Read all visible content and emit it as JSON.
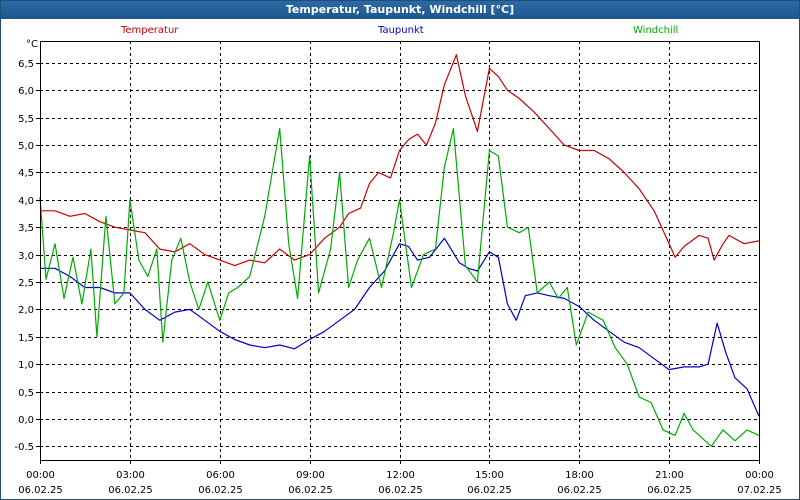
{
  "window": {
    "title": "Temperatur, Taupunkt, Windchill [°C]"
  },
  "colors": {
    "temperatur": "#cc0000",
    "taupunkt": "#0000cc",
    "windchill": "#00aa00",
    "grid": "#000000"
  },
  "chart_data": {
    "type": "line",
    "title": "Temperatur, Taupunkt, Windchill [°C]",
    "ylabel": "°C",
    "ylim": [
      -0.75,
      6.9
    ],
    "yticks": [
      -0.5,
      0.0,
      0.5,
      1.0,
      1.5,
      2.0,
      2.5,
      3.0,
      3.5,
      4.0,
      4.5,
      5.0,
      5.5,
      6.0,
      6.5
    ],
    "ytick_labels": [
      "-0.5",
      "0,0",
      "0,5",
      "1,0",
      "1,5",
      "2,0",
      "2,5",
      "3,0",
      "3,5",
      "4,0",
      "4,5",
      "5,0",
      "5,5",
      "6,0",
      "6,5"
    ],
    "xlim": [
      0,
      24
    ],
    "xticks": [
      {
        "h": 0,
        "time": "00:00",
        "date": "06.02.25"
      },
      {
        "h": 3,
        "time": "03:00",
        "date": "06.02.25"
      },
      {
        "h": 6,
        "time": "06:00",
        "date": "06.02.25"
      },
      {
        "h": 9,
        "time": "09:00",
        "date": "06.02.25"
      },
      {
        "h": 12,
        "time": "12:00",
        "date": "06.02.25"
      },
      {
        "h": 15,
        "time": "15:00",
        "date": "06.02.25"
      },
      {
        "h": 18,
        "time": "18:00",
        "date": "06.02.25"
      },
      {
        "h": 21,
        "time": "21:00",
        "date": "06.02.25"
      },
      {
        "h": 24,
        "time": "00:00",
        "date": "07.02.25"
      }
    ],
    "grid": true,
    "legend_placement": "top",
    "series": [
      {
        "name": "Temperatur",
        "color": "#cc0000",
        "points": [
          [
            0,
            3.8
          ],
          [
            0.5,
            3.8
          ],
          [
            1,
            3.7
          ],
          [
            1.5,
            3.75
          ],
          [
            2,
            3.6
          ],
          [
            2.5,
            3.5
          ],
          [
            3,
            3.45
          ],
          [
            3.5,
            3.4
          ],
          [
            4,
            3.1
          ],
          [
            4.5,
            3.05
          ],
          [
            5,
            3.2
          ],
          [
            5.5,
            3.0
          ],
          [
            6,
            2.9
          ],
          [
            6.5,
            2.8
          ],
          [
            7,
            2.9
          ],
          [
            7.5,
            2.85
          ],
          [
            8,
            3.1
          ],
          [
            8.5,
            2.9
          ],
          [
            9,
            3.0
          ],
          [
            9.5,
            3.3
          ],
          [
            10,
            3.5
          ],
          [
            10.3,
            3.75
          ],
          [
            10.7,
            3.85
          ],
          [
            11,
            4.3
          ],
          [
            11.3,
            4.5
          ],
          [
            11.7,
            4.4
          ],
          [
            12,
            4.9
          ],
          [
            12.3,
            5.1
          ],
          [
            12.6,
            5.2
          ],
          [
            12.9,
            5.0
          ],
          [
            13.2,
            5.4
          ],
          [
            13.5,
            6.1
          ],
          [
            13.9,
            6.65
          ],
          [
            14.2,
            5.9
          ],
          [
            14.6,
            5.25
          ],
          [
            15,
            6.4
          ],
          [
            15.3,
            6.25
          ],
          [
            15.6,
            6.0
          ],
          [
            16,
            5.85
          ],
          [
            16.5,
            5.6
          ],
          [
            17,
            5.3
          ],
          [
            17.5,
            5.0
          ],
          [
            18,
            4.9
          ],
          [
            18.5,
            4.9
          ],
          [
            19,
            4.75
          ],
          [
            19.5,
            4.5
          ],
          [
            20,
            4.2
          ],
          [
            20.5,
            3.8
          ],
          [
            21,
            3.2
          ],
          [
            21.2,
            2.95
          ],
          [
            21.5,
            3.15
          ],
          [
            22,
            3.35
          ],
          [
            22.3,
            3.3
          ],
          [
            22.5,
            2.9
          ],
          [
            22.8,
            3.2
          ],
          [
            23,
            3.35
          ],
          [
            23.5,
            3.2
          ],
          [
            24,
            3.25
          ]
        ]
      },
      {
        "name": "Taupunkt",
        "color": "#0000cc",
        "points": [
          [
            0,
            2.75
          ],
          [
            0.5,
            2.75
          ],
          [
            1,
            2.6
          ],
          [
            1.5,
            2.4
          ],
          [
            2,
            2.4
          ],
          [
            2.5,
            2.3
          ],
          [
            3,
            2.3
          ],
          [
            3.5,
            2.0
          ],
          [
            4,
            1.8
          ],
          [
            4.5,
            1.95
          ],
          [
            5,
            2.0
          ],
          [
            5.5,
            1.8
          ],
          [
            6,
            1.6
          ],
          [
            6.5,
            1.45
          ],
          [
            7,
            1.35
          ],
          [
            7.5,
            1.3
          ],
          [
            8,
            1.35
          ],
          [
            8.5,
            1.28
          ],
          [
            9,
            1.45
          ],
          [
            9.5,
            1.6
          ],
          [
            10,
            1.8
          ],
          [
            10.5,
            2.0
          ],
          [
            11,
            2.4
          ],
          [
            11.5,
            2.7
          ],
          [
            12,
            3.2
          ],
          [
            12.3,
            3.15
          ],
          [
            12.6,
            2.9
          ],
          [
            13,
            2.95
          ],
          [
            13.5,
            3.3
          ],
          [
            14,
            2.85
          ],
          [
            14.3,
            2.75
          ],
          [
            14.6,
            2.7
          ],
          [
            15,
            3.05
          ],
          [
            15.3,
            2.95
          ],
          [
            15.6,
            2.1
          ],
          [
            15.9,
            1.8
          ],
          [
            16.2,
            2.25
          ],
          [
            16.6,
            2.3
          ],
          [
            17,
            2.25
          ],
          [
            17.5,
            2.2
          ],
          [
            18,
            2.05
          ],
          [
            18.5,
            1.8
          ],
          [
            19,
            1.6
          ],
          [
            19.5,
            1.4
          ],
          [
            20,
            1.3
          ],
          [
            20.5,
            1.1
          ],
          [
            21,
            0.9
          ],
          [
            21.5,
            0.95
          ],
          [
            22,
            0.95
          ],
          [
            22.3,
            1.0
          ],
          [
            22.6,
            1.75
          ],
          [
            22.9,
            1.2
          ],
          [
            23.2,
            0.75
          ],
          [
            23.6,
            0.55
          ],
          [
            24,
            0.05
          ]
        ]
      },
      {
        "name": "Windchill",
        "color": "#00aa00",
        "points": [
          [
            0,
            4.05
          ],
          [
            0.2,
            2.55
          ],
          [
            0.5,
            3.2
          ],
          [
            0.8,
            2.2
          ],
          [
            1.1,
            2.95
          ],
          [
            1.4,
            2.1
          ],
          [
            1.7,
            3.1
          ],
          [
            1.9,
            1.5
          ],
          [
            2.2,
            3.7
          ],
          [
            2.5,
            2.1
          ],
          [
            2.8,
            2.3
          ],
          [
            3.0,
            4.0
          ],
          [
            3.3,
            2.9
          ],
          [
            3.6,
            2.6
          ],
          [
            3.9,
            3.1
          ],
          [
            4.1,
            1.4
          ],
          [
            4.4,
            2.9
          ],
          [
            4.7,
            3.3
          ],
          [
            5.0,
            2.5
          ],
          [
            5.3,
            2.0
          ],
          [
            5.6,
            2.5
          ],
          [
            6.0,
            1.8
          ],
          [
            6.3,
            2.3
          ],
          [
            6.6,
            2.4
          ],
          [
            7,
            2.6
          ],
          [
            7.5,
            3.7
          ],
          [
            8,
            5.3
          ],
          [
            8.3,
            3.2
          ],
          [
            8.6,
            2.2
          ],
          [
            9,
            4.8
          ],
          [
            9.3,
            2.3
          ],
          [
            9.7,
            3.1
          ],
          [
            10,
            4.5
          ],
          [
            10.3,
            2.4
          ],
          [
            10.6,
            2.9
          ],
          [
            11,
            3.3
          ],
          [
            11.4,
            2.4
          ],
          [
            11.8,
            3.4
          ],
          [
            12,
            4.0
          ],
          [
            12.4,
            2.4
          ],
          [
            12.8,
            3.0
          ],
          [
            13.2,
            3.1
          ],
          [
            13.5,
            4.6
          ],
          [
            13.8,
            5.3
          ],
          [
            14.2,
            2.8
          ],
          [
            14.6,
            2.5
          ],
          [
            15,
            4.9
          ],
          [
            15.3,
            4.8
          ],
          [
            15.6,
            3.5
          ],
          [
            16,
            3.4
          ],
          [
            16.3,
            3.5
          ],
          [
            16.6,
            2.3
          ],
          [
            17,
            2.5
          ],
          [
            17.3,
            2.2
          ],
          [
            17.6,
            2.4
          ],
          [
            17.9,
            1.35
          ],
          [
            18.3,
            1.95
          ],
          [
            18.8,
            1.8
          ],
          [
            19.2,
            1.3
          ],
          [
            19.6,
            1.0
          ],
          [
            20,
            0.4
          ],
          [
            20.4,
            0.3
          ],
          [
            20.8,
            -0.2
          ],
          [
            21.2,
            -0.3
          ],
          [
            21.5,
            0.1
          ],
          [
            21.8,
            -0.2
          ],
          [
            22.1,
            -0.35
          ],
          [
            22.4,
            -0.5
          ],
          [
            22.8,
            -0.2
          ],
          [
            23.2,
            -0.4
          ],
          [
            23.6,
            -0.2
          ],
          [
            24,
            -0.3
          ]
        ]
      }
    ]
  }
}
